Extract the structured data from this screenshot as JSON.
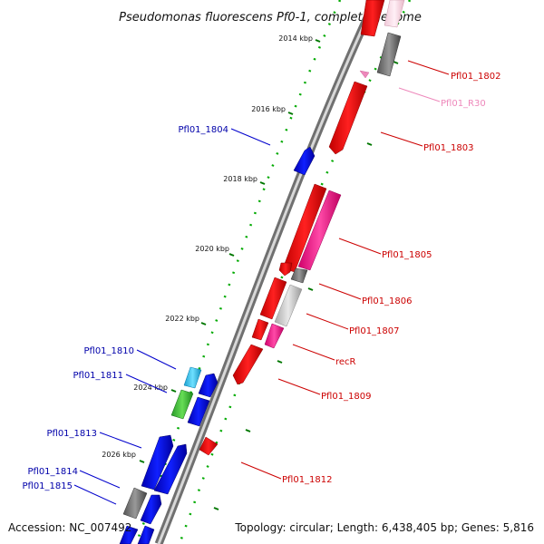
{
  "map": {
    "title": "Pseudomonas fluorescens Pf0-1, complete genome",
    "accession": "Accession: NC_007492",
    "topology": "Topology: circular; Length: 6,438,405 bp; Genes: 5,816"
  },
  "ticks": [
    {
      "label": "2014 kbp"
    },
    {
      "label": "2016 kbp"
    },
    {
      "label": "2018 kbp"
    },
    {
      "label": "2020 kbp"
    },
    {
      "label": "2022 kbp"
    },
    {
      "label": "2024 kbp"
    },
    {
      "label": "2026 kbp"
    }
  ],
  "genes_right": [
    {
      "label": "Pfl01_1802",
      "color": "#cc0000"
    },
    {
      "label": "Pfl01_R30",
      "color": "#ee88bb"
    },
    {
      "label": "Pfl01_1803",
      "color": "#cc0000"
    },
    {
      "label": "Pfl01_1805",
      "color": "#cc0000"
    },
    {
      "label": "Pfl01_1806",
      "color": "#cc0000"
    },
    {
      "label": "Pfl01_1807",
      "color": "#cc0000"
    },
    {
      "label": "recR",
      "color": "#cc0000"
    },
    {
      "label": "Pfl01_1809",
      "color": "#cc0000"
    },
    {
      "label": "Pfl01_1812",
      "color": "#cc0000"
    }
  ],
  "genes_left": [
    {
      "label": "Pfl01_1804",
      "color": "#0000aa"
    },
    {
      "label": "Pfl01_1810",
      "color": "#0000aa"
    },
    {
      "label": "Pfl01_1811",
      "color": "#0000aa"
    },
    {
      "label": "Pfl01_1813",
      "color": "#0000aa"
    },
    {
      "label": "Pfl01_1814",
      "color": "#0000aa"
    },
    {
      "label": "Pfl01_1815",
      "color": "#0000aa"
    }
  ],
  "colors": {
    "forward_strand": "#ff0000",
    "reverse_strand": "#0000ff",
    "rna": "#ff3399",
    "pseudo": "#777777",
    "tick_dots": "#00aa00",
    "backbone": "#888888"
  }
}
